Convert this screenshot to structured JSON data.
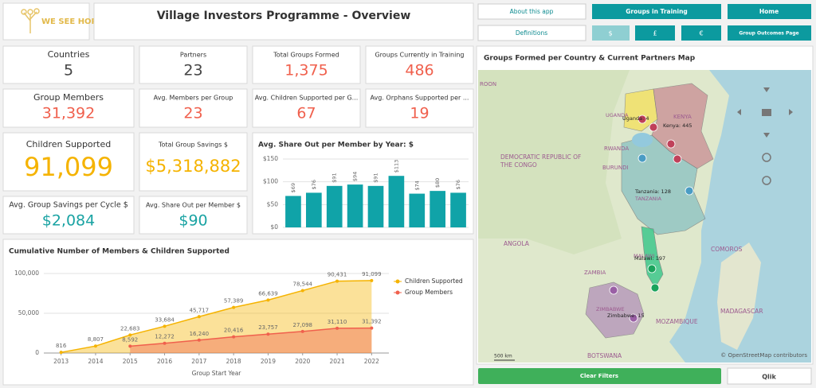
{
  "header": {
    "logo": "WE SEE HOPE",
    "title": "Village Investors Programme - Overview"
  },
  "buttons": {
    "about": "About this app",
    "training": "Groups in Training",
    "home": "Home",
    "definitions": "Definitions",
    "usd": "$",
    "gbp": "£",
    "eur": "€",
    "outcomes": "Group Outcomes Page",
    "clear": "Clear Filters",
    "qlik": "Qlik"
  },
  "kpis": [
    {
      "label": "Countries",
      "value": "5",
      "color": "#444444"
    },
    {
      "label": "Partners",
      "value": "23",
      "color": "#444444"
    },
    {
      "label": "Total Groups Formed",
      "value": "1,375",
      "color": "#f0604d"
    },
    {
      "label": "Groups Currently in Training",
      "value": "486",
      "color": "#f0604d"
    },
    {
      "label": "Group Members",
      "value": "31,392",
      "color": "#f0604d"
    },
    {
      "label": "Avg. Members per Group",
      "value": "23",
      "color": "#f0604d"
    },
    {
      "label": "Avg. Children Supported per G...",
      "value": "67",
      "color": "#f0604d"
    },
    {
      "label": "Avg. Orphans Supported per ...",
      "value": "19",
      "color": "#f0604d"
    },
    {
      "label": "Children Supported",
      "value": "91,099",
      "color": "#f5b300"
    },
    {
      "label": "Total Group Savings $",
      "value": "$5,318,882",
      "color": "#f5b300"
    },
    {
      "label": "Avg. Group Savings per Cycle $",
      "value": "$2,084",
      "color": "#1aa3a3"
    },
    {
      "label": "Avg. Share Out per Member $",
      "value": "$90",
      "color": "#1aa3a3"
    }
  ],
  "chart_data": [
    {
      "type": "bar",
      "title": "Avg. Share Out per Member by Year: $",
      "categories": [
        null,
        null,
        null,
        null,
        null,
        null,
        null,
        null,
        null
      ],
      "values": [
        69,
        76,
        91,
        94,
        91,
        113,
        74,
        80,
        76
      ],
      "value_labels": [
        "$69",
        "$76",
        "$91",
        "$94",
        "$91",
        "$113",
        "$74",
        "$80",
        "$76"
      ],
      "color": "#10a3a8",
      "ylim": [
        0,
        150
      ],
      "yticks": [
        {
          "value": 0,
          "label": "$0"
        },
        {
          "value": 50,
          "label": "$50"
        },
        {
          "value": 100,
          "label": "$100"
        },
        {
          "value": 150,
          "label": "$150"
        }
      ],
      "grid": true
    },
    {
      "type": "area",
      "title": "Cumulative Number of Members & Children Supported",
      "x_label": "Group Start Year",
      "x": [
        2013,
        2014,
        2015,
        2016,
        2017,
        2018,
        2019,
        2020,
        2021,
        2022
      ],
      "xlim": [
        2012.5,
        2022.5
      ],
      "xticks": [
        2013,
        2014,
        2015,
        2016,
        2017,
        2018,
        2019,
        2020,
        2021,
        2022
      ],
      "ylim": [
        0,
        100000
      ],
      "yticks": [
        0,
        {
          "value": 50000,
          "label": "50,000"
        },
        {
          "value": 100000,
          "label": "100,000"
        }
      ],
      "grid": true,
      "legend": "right",
      "series": [
        {
          "name": "Children Supported",
          "color": "#f5b300",
          "values": [
            816,
            8807,
            22683,
            33684,
            45717,
            57389,
            66639,
            78544,
            90431,
            91099
          ],
          "value_labels": [
            "816",
            "8,807",
            "22,683",
            "33,684",
            "45,717",
            "57,389",
            "66,639",
            "78,544",
            "90,431",
            "91,099"
          ]
        },
        {
          "name": "Group Members",
          "color": "#f0604d",
          "values": [
            null,
            null,
            8592,
            12272,
            16240,
            20416,
            23757,
            27098,
            31110,
            31392
          ],
          "value_labels": [
            null,
            null,
            "8,592",
            "12,272",
            "16,240",
            "20,416",
            "23,757",
            "27,098",
            "31,110",
            "31,392"
          ]
        }
      ]
    }
  ],
  "map": {
    "title": "Groups Formed per Country & Current Partners Map",
    "countries": [
      "ROON",
      "DEMOCRATIC REPUBLIC OF THE CONGO",
      "RWANDA",
      "BURUNDI",
      "KENYA",
      "TANZANIA",
      "ANGOLA",
      "ZAMBIA",
      "MALAWI",
      "COMOROS",
      "ZIMBABWE",
      "MOZAMBIQUE",
      "MADAGASCAR",
      "BOTSWANA",
      "UGANDA"
    ],
    "bubbles": [
      "Uganda: 4",
      "Kenya: 445",
      "Tanzania: 128",
      "Malawi: 197",
      "Zimbabwe: 15"
    ],
    "scale": "500 km",
    "attribution": "© OpenStreetMap contributors"
  }
}
